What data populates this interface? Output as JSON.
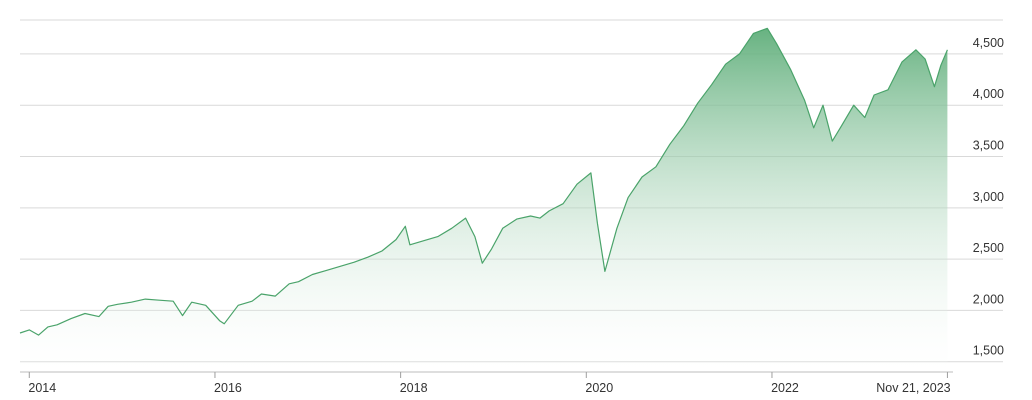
{
  "chart_data": {
    "type": "area",
    "title": "",
    "xlabel": "",
    "ylabel": "",
    "x_ticks": [
      {
        "x": 2014.0,
        "label": "2014"
      },
      {
        "x": 2016.0,
        "label": "2016"
      },
      {
        "x": 2018.0,
        "label": "2018"
      },
      {
        "x": 2020.0,
        "label": "2020"
      },
      {
        "x": 2022.0,
        "label": "2022"
      }
    ],
    "current_label": "Nov 21, 2023",
    "y_ticks": [
      {
        "value": 1500,
        "label": "1,500"
      },
      {
        "value": 2000,
        "label": "2,000"
      },
      {
        "value": 2500,
        "label": "2,500"
      },
      {
        "value": 3000,
        "label": "3,000"
      },
      {
        "value": 3500,
        "label": "3,500"
      },
      {
        "value": 4000,
        "label": "4,000"
      },
      {
        "value": 4500,
        "label": "4,500"
      }
    ],
    "ylim": [
      1400,
      4850
    ],
    "xlim": [
      2013.9,
      2023.95
    ],
    "grid": true,
    "colors": {
      "line": "#4aa36a",
      "fill_top": "#5fae7a",
      "fill_bottom": "#ffffff",
      "grid": "#d9d9d9",
      "text": "#333333"
    },
    "series": [
      {
        "x": [
          2013.9,
          2014.0,
          2014.1,
          2014.2,
          2014.3,
          2014.45,
          2014.6,
          2014.75,
          2014.85,
          2014.95,
          2015.1,
          2015.25,
          2015.4,
          2015.55,
          2015.65,
          2015.75,
          2015.9,
          2016.05,
          2016.1,
          2016.25,
          2016.4,
          2016.5,
          2016.65,
          2016.8,
          2016.9,
          2017.05,
          2017.2,
          2017.35,
          2017.5,
          2017.65,
          2017.8,
          2017.95,
          2018.05,
          2018.1,
          2018.25,
          2018.4,
          2018.55,
          2018.7,
          2018.8,
          2018.88,
          2018.98,
          2019.1,
          2019.25,
          2019.4,
          2019.5,
          2019.6,
          2019.75,
          2019.9,
          2020.05,
          2020.12,
          2020.2,
          2020.33,
          2020.45,
          2020.6,
          2020.75,
          2020.9,
          2021.05,
          2021.2,
          2021.35,
          2021.5,
          2021.65,
          2021.8,
          2021.95,
          2022.05,
          2022.2,
          2022.35,
          2022.45,
          2022.55,
          2022.65,
          2022.75,
          2022.88,
          2023.0,
          2023.1,
          2023.25,
          2023.4,
          2023.55,
          2023.65,
          2023.75,
          2023.82,
          2023.89
        ],
        "y": [
          1780,
          1810,
          1760,
          1840,
          1860,
          1920,
          1970,
          1940,
          2040,
          2060,
          2080,
          2110,
          2100,
          2090,
          1950,
          2080,
          2050,
          1900,
          1870,
          2050,
          2090,
          2160,
          2140,
          2260,
          2280,
          2350,
          2390,
          2430,
          2470,
          2520,
          2580,
          2690,
          2820,
          2640,
          2680,
          2720,
          2800,
          2900,
          2720,
          2460,
          2600,
          2800,
          2890,
          2920,
          2900,
          2970,
          3040,
          3230,
          3340,
          2850,
          2380,
          2800,
          3100,
          3300,
          3400,
          3620,
          3800,
          4020,
          4200,
          4400,
          4500,
          4700,
          4750,
          4600,
          4350,
          4050,
          3780,
          4000,
          3650,
          3800,
          4000,
          3880,
          4100,
          4150,
          4420,
          4540,
          4450,
          4180,
          4390,
          4540
        ],
        "name": ""
      }
    ]
  }
}
